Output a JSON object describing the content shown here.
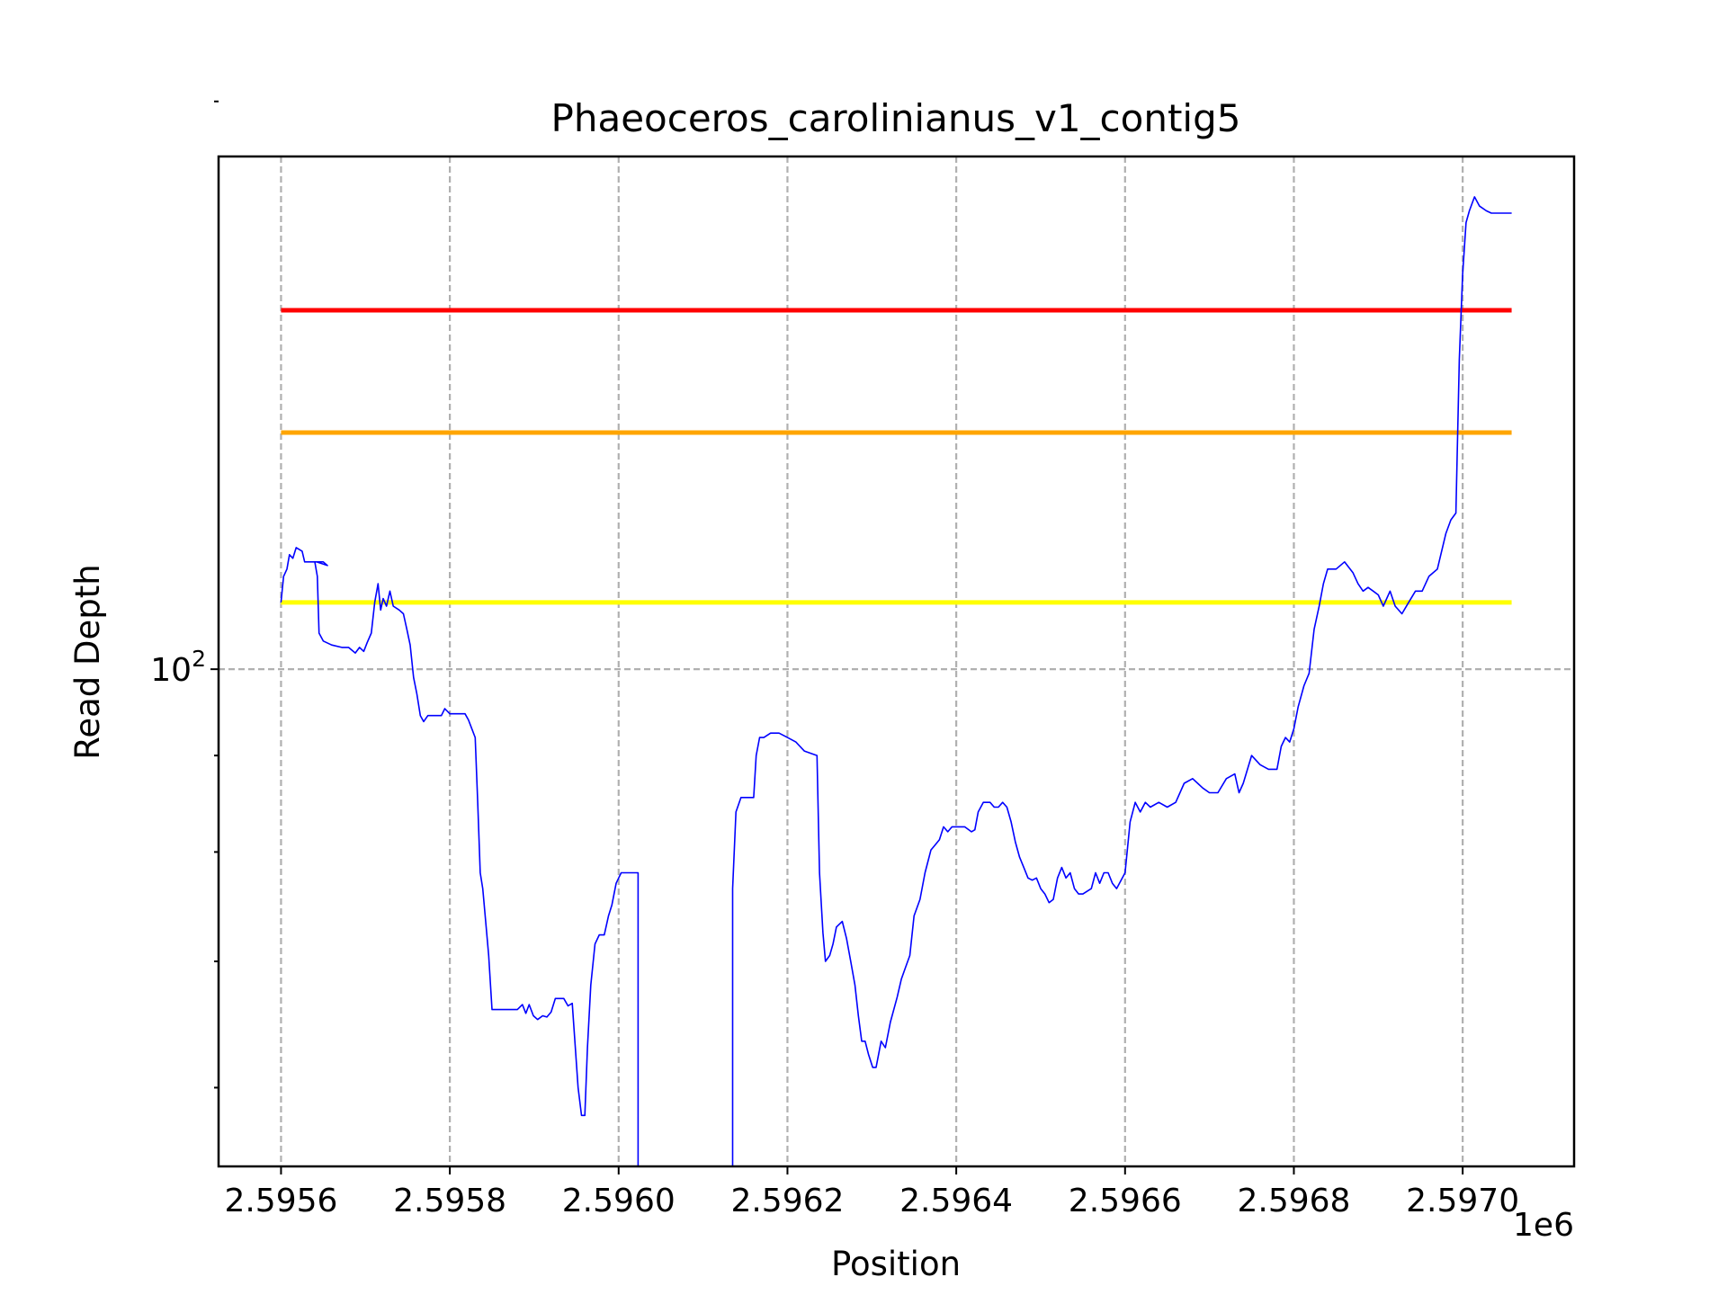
{
  "chart_data": {
    "type": "line",
    "title": "Phaeoceros_carolinianus_v1_contig5",
    "xlabel": "Position",
    "ylabel": "Read Depth",
    "x_offset_label": "1e6",
    "xlim": [
      2595526,
      2597132
    ],
    "ylim": [
      54.5,
      187
    ],
    "y_scale": "log",
    "x_tick_labels": [
      "2.5956",
      "2.5958",
      "2.5960",
      "2.5962",
      "2.5964",
      "2.5966",
      "2.5968",
      "2.5970"
    ],
    "x_ticks": [
      2595600,
      2595800,
      2596000,
      2596200,
      2596400,
      2596600,
      2596800,
      2597000
    ],
    "y_major_ticks": [
      {
        "value": 100,
        "base": "10",
        "exp": "2"
      }
    ],
    "y_minor_ticks": [
      60,
      70,
      80,
      90,
      200
    ],
    "grid": true,
    "thresholds": [
      {
        "value": 155.0,
        "color": "#ff0000"
      },
      {
        "value": 133.5,
        "color": "#ffa500"
      },
      {
        "value": 108.5,
        "color": "#ffff00"
      }
    ],
    "series": [
      {
        "color": "#0000ff",
        "points": [
          [
            2595600,
            108.5
          ],
          [
            2595603,
            112
          ],
          [
            2595607,
            113
          ],
          [
            2595610,
            115
          ],
          [
            2595614,
            114.5
          ],
          [
            2595618,
            116
          ],
          [
            2595625,
            115.5
          ],
          [
            2595628,
            114
          ],
          [
            2595640,
            114
          ],
          [
            2595650,
            114
          ],
          [
            2595655,
            113.5
          ],
          [
            2595642,
            114
          ],
          [
            2595640,
            114
          ],
          [
            2595643,
            112
          ],
          [
            2595645,
            104.5
          ],
          [
            2595650,
            103.5
          ],
          [
            2595660,
            103
          ],
          [
            2595672,
            102.7
          ],
          [
            2595680,
            102.7
          ],
          [
            2595688,
            102
          ],
          [
            2595693,
            102.7
          ],
          [
            2595698,
            102.2
          ],
          [
            2595702,
            103.3
          ],
          [
            2595707,
            104.5
          ],
          [
            2595711,
            108.5
          ],
          [
            2595715,
            111
          ],
          [
            2595718,
            107.5
          ],
          [
            2595721,
            109
          ],
          [
            2595725,
            108
          ],
          [
            2595729,
            110
          ],
          [
            2595733,
            108
          ],
          [
            2595740,
            107.5
          ],
          [
            2595745,
            107
          ],
          [
            2595749,
            105
          ],
          [
            2595753,
            103
          ],
          [
            2595757,
            99
          ],
          [
            2595761,
            97
          ],
          [
            2595765,
            94.5
          ],
          [
            2595769,
            93.8
          ],
          [
            2595774,
            94.5
          ],
          [
            2595785,
            94.5
          ],
          [
            2595790,
            94.5
          ],
          [
            2595794,
            95.3
          ],
          [
            2595800,
            94.7
          ],
          [
            2595810,
            94.7
          ],
          [
            2595818,
            94.7
          ],
          [
            2595822,
            94
          ],
          [
            2595826,
            93
          ],
          [
            2595830,
            92
          ],
          [
            2595833,
            85
          ],
          [
            2595836,
            78
          ],
          [
            2595839,
            76.5
          ],
          [
            2595843,
            73
          ],
          [
            2595846,
            70.5
          ],
          [
            2595850,
            66
          ],
          [
            2595870,
            66
          ],
          [
            2595880,
            66
          ],
          [
            2595886,
            66.4
          ],
          [
            2595890,
            65.7
          ],
          [
            2595894,
            66.4
          ],
          [
            2595899,
            65.5
          ],
          [
            2595904,
            65.2
          ],
          [
            2595910,
            65.5
          ],
          [
            2595915,
            65.4
          ],
          [
            2595920,
            65.8
          ],
          [
            2595925,
            66.9
          ],
          [
            2595935,
            66.9
          ],
          [
            2595940,
            66.3
          ],
          [
            2595945,
            66.5
          ],
          [
            2595952,
            60
          ],
          [
            2595956,
            58
          ],
          [
            2595960,
            58
          ],
          [
            2595963,
            63
          ],
          [
            2595967,
            68
          ],
          [
            2595972,
            71.5
          ],
          [
            2595977,
            72.3
          ],
          [
            2595983,
            72.3
          ],
          [
            2595988,
            74
          ],
          [
            2595992,
            75
          ],
          [
            2595997,
            77
          ],
          [
            2596000,
            77.5
          ],
          [
            2596003,
            78
          ],
          [
            2596023,
            78
          ],
          [
            2596023,
            40
          ],
          [
            2596135,
            40
          ],
          [
            2596135,
            76.5
          ],
          [
            2596139,
            84
          ],
          [
            2596145,
            85.5
          ],
          [
            2596155,
            85.5
          ],
          [
            2596160,
            85.5
          ],
          [
            2596163,
            90
          ],
          [
            2596167,
            92
          ],
          [
            2596172,
            92
          ],
          [
            2596180,
            92.5
          ],
          [
            2596190,
            92.5
          ],
          [
            2596200,
            92
          ],
          [
            2596210,
            91.5
          ],
          [
            2596220,
            90.5
          ],
          [
            2596235,
            90
          ],
          [
            2596238,
            78
          ],
          [
            2596242,
            72.5
          ],
          [
            2596245,
            70
          ],
          [
            2596250,
            70.5
          ],
          [
            2596254,
            71.5
          ],
          [
            2596258,
            73
          ],
          [
            2596265,
            73.5
          ],
          [
            2596270,
            72
          ],
          [
            2596275,
            70
          ],
          [
            2596280,
            68
          ],
          [
            2596284,
            65.5
          ],
          [
            2596288,
            63.5
          ],
          [
            2596292,
            63.5
          ],
          [
            2596296,
            62.5
          ],
          [
            2596301,
            61.5
          ],
          [
            2596305,
            61.5
          ],
          [
            2596311,
            63.5
          ],
          [
            2596316,
            63
          ],
          [
            2596322,
            65
          ],
          [
            2596330,
            67
          ],
          [
            2596335,
            68.5
          ],
          [
            2596340,
            69.5
          ],
          [
            2596345,
            70.5
          ],
          [
            2596350,
            74
          ],
          [
            2596357,
            75.5
          ],
          [
            2596363,
            78
          ],
          [
            2596370,
            80.2
          ],
          [
            2596375,
            80.7
          ],
          [
            2596380,
            81.2
          ],
          [
            2596385,
            82.5
          ],
          [
            2596390,
            82
          ],
          [
            2596395,
            82.5
          ],
          [
            2596400,
            82.5
          ],
          [
            2596410,
            82.5
          ],
          [
            2596418,
            82
          ],
          [
            2596422,
            82.2
          ],
          [
            2596426,
            84
          ],
          [
            2596432,
            85
          ],
          [
            2596440,
            85
          ],
          [
            2596445,
            84.5
          ],
          [
            2596450,
            84.5
          ],
          [
            2596455,
            85
          ],
          [
            2596460,
            84.5
          ],
          [
            2596465,
            83
          ],
          [
            2596470,
            81
          ],
          [
            2596475,
            79.5
          ],
          [
            2596480,
            78.5
          ],
          [
            2596485,
            77.5
          ],
          [
            2596490,
            77.3
          ],
          [
            2596495,
            77.5
          ],
          [
            2596500,
            76.5
          ],
          [
            2596505,
            76
          ],
          [
            2596510,
            75.2
          ],
          [
            2596515,
            75.5
          ],
          [
            2596520,
            77.5
          ],
          [
            2596525,
            78.5
          ],
          [
            2596530,
            77.5
          ],
          [
            2596535,
            78
          ],
          [
            2596540,
            76.5
          ],
          [
            2596545,
            76
          ],
          [
            2596550,
            76
          ],
          [
            2596560,
            76.5
          ],
          [
            2596565,
            78
          ],
          [
            2596570,
            77
          ],
          [
            2596575,
            78
          ],
          [
            2596580,
            78
          ],
          [
            2596585,
            77
          ],
          [
            2596590,
            76.5
          ],
          [
            2596600,
            78
          ],
          [
            2596606,
            83
          ],
          [
            2596612,
            85
          ],
          [
            2596618,
            84
          ],
          [
            2596624,
            85
          ],
          [
            2596630,
            84.5
          ],
          [
            2596640,
            85
          ],
          [
            2596650,
            84.5
          ],
          [
            2596660,
            85
          ],
          [
            2596670,
            87
          ],
          [
            2596680,
            87.5
          ],
          [
            2596686,
            87
          ],
          [
            2596692,
            86.5
          ],
          [
            2596700,
            86
          ],
          [
            2596710,
            86
          ],
          [
            2596720,
            87.5
          ],
          [
            2596730,
            88
          ],
          [
            2596735,
            86
          ],
          [
            2596740,
            87
          ],
          [
            2596750,
            90
          ],
          [
            2596760,
            89
          ],
          [
            2596770,
            88.5
          ],
          [
            2596780,
            88.5
          ],
          [
            2596785,
            91
          ],
          [
            2596790,
            92
          ],
          [
            2596795,
            91.5
          ],
          [
            2596800,
            93
          ],
          [
            2596805,
            95.5
          ],
          [
            2596812,
            98
          ],
          [
            2596818,
            99.5
          ],
          [
            2596824,
            105
          ],
          [
            2596830,
            108
          ],
          [
            2596835,
            111
          ],
          [
            2596840,
            113
          ],
          [
            2596850,
            113
          ],
          [
            2596860,
            114
          ],
          [
            2596870,
            112.5
          ],
          [
            2596876,
            111
          ],
          [
            2596882,
            110
          ],
          [
            2596888,
            110.5
          ],
          [
            2596894,
            110
          ],
          [
            2596900,
            109.5
          ],
          [
            2596906,
            108
          ],
          [
            2596914,
            110
          ],
          [
            2596920,
            108
          ],
          [
            2596928,
            107
          ],
          [
            2596936,
            108.5
          ],
          [
            2596944,
            110
          ],
          [
            2596952,
            110
          ],
          [
            2596960,
            112
          ],
          [
            2596970,
            113
          ],
          [
            2596980,
            118
          ],
          [
            2596986,
            120
          ],
          [
            2596992,
            121
          ],
          [
            2596996,
            146
          ],
          [
            2597000,
            162
          ],
          [
            2597004,
            172.5
          ],
          [
            2597008,
            175
          ],
          [
            2597014,
            178
          ],
          [
            2597020,
            176
          ],
          [
            2597028,
            175
          ],
          [
            2597034,
            174.5
          ],
          [
            2597040,
            174.5
          ],
          [
            2597048,
            174.5
          ],
          [
            2597058,
            174.5
          ]
        ]
      }
    ]
  }
}
